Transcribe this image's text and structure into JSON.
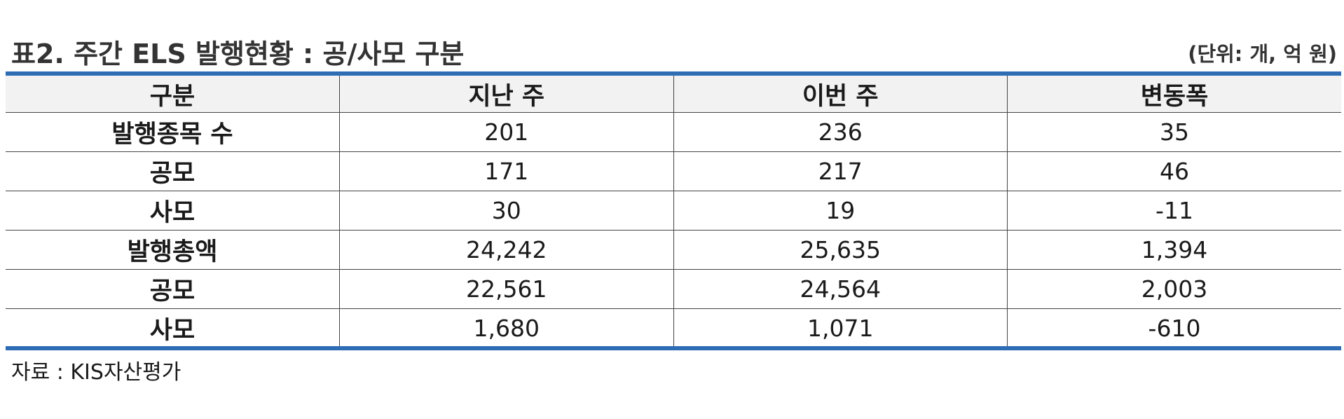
{
  "title": "표2. 주간 ELS 발행현황 : 공/사모 구분",
  "unit": "(단위: 개, 억 원)",
  "table": {
    "headers": [
      "구분",
      "지난 주",
      "이번 주",
      "변동폭"
    ],
    "rows": [
      {
        "label": "발행종목 수",
        "last_week": "201",
        "this_week": "236",
        "change": "35"
      },
      {
        "label": "공모",
        "last_week": "171",
        "this_week": "217",
        "change": "46"
      },
      {
        "label": "사모",
        "last_week": "30",
        "this_week": "19",
        "change": "-11"
      },
      {
        "label": "발행총액",
        "last_week": "24,242",
        "this_week": "25,635",
        "change": "1,394"
      },
      {
        "label": "공모",
        "last_week": "22,561",
        "this_week": "24,564",
        "change": "2,003"
      },
      {
        "label": "사모",
        "last_week": "1,680",
        "this_week": "1,071",
        "change": "-610"
      }
    ]
  },
  "source": "자료 : KIS자산평가",
  "colors": {
    "rule": "#2e6db4",
    "header_bg": "#f2f2f2",
    "positive_change": "#ff0000",
    "negative_change": "#0000ff"
  }
}
